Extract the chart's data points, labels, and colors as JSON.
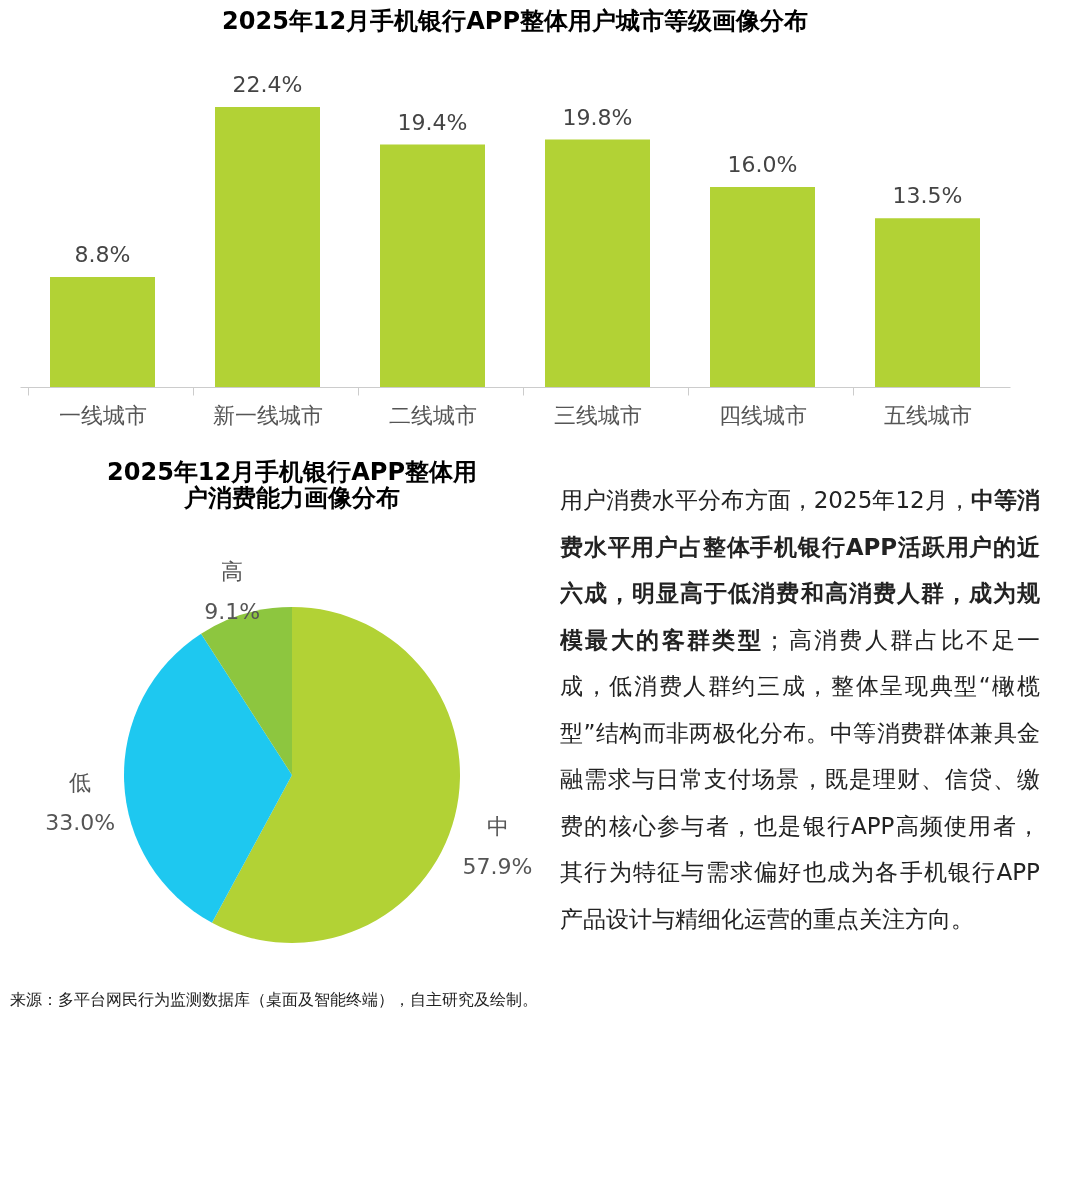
{
  "chart_data": [
    {
      "type": "bar",
      "title": "2025年12月手机银行APP整体用户城市等级画像分布",
      "categories": [
        "一线城市",
        "新一线城市",
        "二线城市",
        "三线城市",
        "四线城市",
        "五线城市"
      ],
      "values": [
        8.8,
        22.4,
        19.4,
        19.8,
        16.0,
        13.5
      ],
      "value_labels": [
        "8.8%",
        "22.4%",
        "19.4%",
        "19.8%",
        "16.0%",
        "13.5%"
      ],
      "color": "#b2d235",
      "tick_labels": "x"
    },
    {
      "type": "pie",
      "title": "2025年12月手机银行APP整体用户消费能力画像分布",
      "categories": [
        "中",
        "低",
        "高"
      ],
      "values": [
        57.9,
        33.0,
        9.1
      ],
      "value_labels": [
        "57.9%",
        "33.0%",
        "9.1%"
      ],
      "colors": [
        "#b2d235",
        "#1ec8f0",
        "#8dc63f"
      ],
      "legend": false,
      "annotations": [
        "来源：多平台网民行为监测数据库（桌面及智能终端），自主研究及绘制。"
      ]
    },
    {
      "type": "other",
      "annotations": [
        "用户消费水平分布方面，2025年12月，",
        "中等消费水平用户占整体手机银行APP活跃用户的近六成，明显高于低消费和高消费人群，成为规模最大的客群类型",
        "；高消费人群占比不足一成，低消费人群约三成，整体呈现典型“橄榄型”结构而非两极化分布。中等消费群体兼具金融需求与日常支付场景，既是理财、信贷、缴费的核心参与者，也是银行APP高频使用者，其行为特征与需求偏好也成为各手机银行APP产品设计与精细化运营的重点关注方向。"
      ]
    }
  ]
}
